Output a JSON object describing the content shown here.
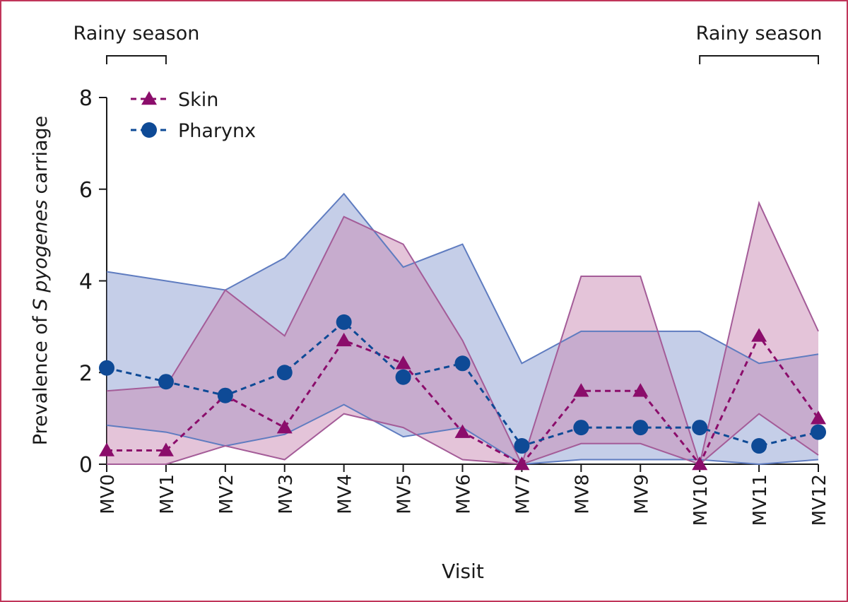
{
  "chart_data": {
    "type": "line",
    "xlabel": "Visit",
    "ylabel": {
      "prefix": "Prevalence of",
      "italic": "S pyogenes",
      "suffix": "carriage"
    },
    "categories": [
      "MV0",
      "MV1",
      "MV2",
      "MV3",
      "MV4",
      "MV5",
      "MV6",
      "MV7",
      "MV8",
      "MV9",
      "MV10",
      "MV11",
      "MV12"
    ],
    "ylim": [
      0,
      8
    ],
    "yticks": [
      0,
      2,
      4,
      6,
      8
    ],
    "legend": "upper left",
    "series": [
      {
        "name": "Skin",
        "color": "#8b0d6b",
        "band_color": "#c98ab4",
        "band_edge": "#a45c98",
        "marker": "triangle",
        "values": [
          0.3,
          0.3,
          1.5,
          0.8,
          2.7,
          2.2,
          0.7,
          0,
          1.6,
          1.6,
          0,
          2.8,
          1.0
        ],
        "lower": [
          0,
          0,
          0.4,
          0.1,
          1.1,
          0.8,
          0.1,
          0,
          0.45,
          0.45,
          0,
          1.1,
          0.2
        ],
        "upper": [
          1.6,
          1.7,
          3.8,
          2.8,
          5.4,
          4.8,
          2.7,
          0,
          4.1,
          4.1,
          0,
          5.7,
          2.9
        ]
      },
      {
        "name": "Pharynx",
        "color": "#0e4a96",
        "band_color": "#8b9dd1",
        "band_edge": "#5f7cc0",
        "marker": "circle",
        "values": [
          2.1,
          1.8,
          1.5,
          2.0,
          3.1,
          1.9,
          2.2,
          0.4,
          0.8,
          0.8,
          0.8,
          0.4,
          0.7
        ],
        "lower": [
          0.85,
          0.7,
          0.4,
          0.65,
          1.3,
          0.6,
          0.8,
          0,
          0.1,
          0.1,
          0.1,
          0,
          0.1
        ],
        "upper": [
          4.2,
          4.0,
          3.8,
          4.5,
          5.9,
          4.3,
          4.8,
          2.2,
          2.9,
          2.9,
          2.9,
          2.2,
          2.4
        ]
      }
    ],
    "annotations": [
      {
        "text": "Rainy season",
        "from": "MV0",
        "to": "MV1"
      },
      {
        "text": "Rainy season",
        "from": "MV10",
        "to": "MV12"
      }
    ]
  }
}
